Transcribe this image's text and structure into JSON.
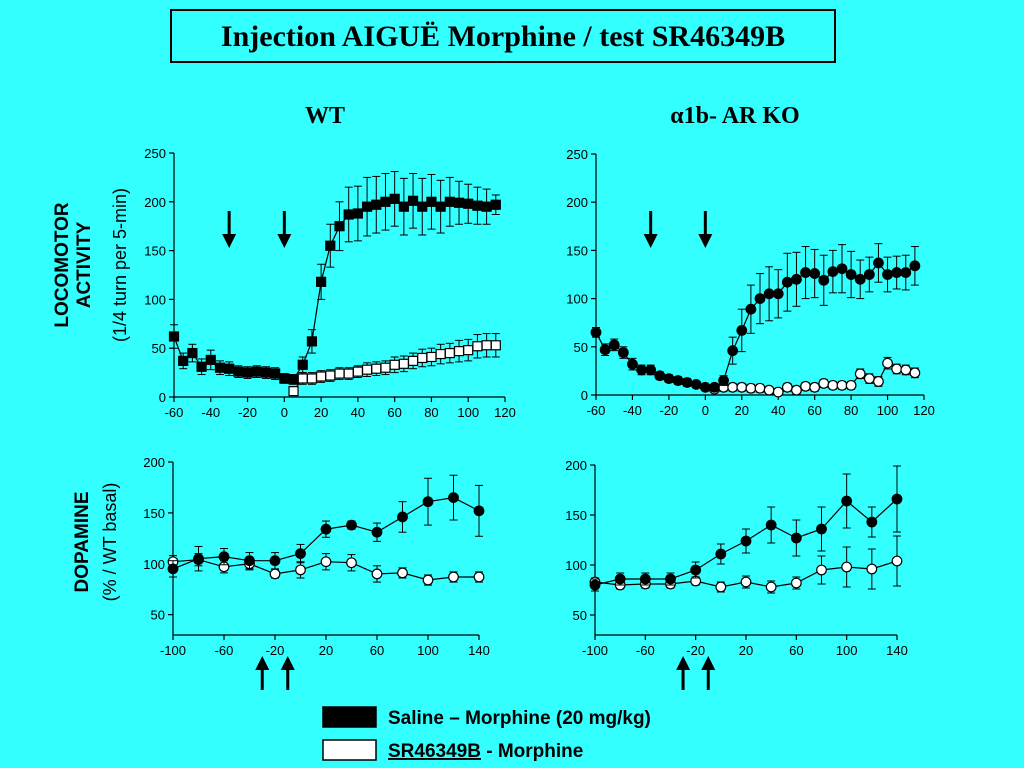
{
  "page": {
    "title": "Injection AIGUË Morphine / test SR46349B",
    "background": "#33ffff"
  },
  "panel_titles": {
    "left": "WT",
    "right": "α1b- AR KO"
  },
  "y_labels": {
    "loco_line1": "LOCOMOTOR",
    "loco_line2": "ACTIVITY",
    "loco_line3": "(1/4 turn per 5-min)",
    "dopa_line1": "DOPAMINE",
    "dopa_line2": "(% / WT basal)"
  },
  "legend": {
    "saline_label": "Saline – Morphine (20 mg/kg)",
    "sr_label_underlined": "SR46349B",
    "sr_label_rest": " - Morphine",
    "saline_marker": "filled",
    "sr_marker": "open"
  },
  "arrows": {
    "locomotor_down_at_x": [
      -30,
      0
    ],
    "dopamine_up_at_x": [
      -30,
      -10
    ]
  },
  "chart_data": [
    {
      "id": "loco-wt",
      "type": "line",
      "xlim": [
        -60,
        120
      ],
      "ylim": [
        0,
        250
      ],
      "xticks": [
        -60,
        -40,
        -20,
        0,
        20,
        40,
        60,
        80,
        100,
        120
      ],
      "yticks": [
        0,
        50,
        100,
        150,
        200,
        250
      ],
      "marker": "square",
      "series": [
        {
          "style": "filled",
          "x": [
            -60,
            -55,
            -50,
            -45,
            -40,
            -35,
            -30,
            -25,
            -20,
            -15,
            -10,
            -5,
            0,
            5,
            10,
            15,
            20,
            25,
            30,
            35,
            40,
            45,
            50,
            55,
            60,
            65,
            70,
            75,
            80,
            85,
            90,
            95,
            100,
            105,
            110,
            115
          ],
          "y": [
            62,
            37,
            45,
            31,
            38,
            30,
            29,
            26,
            25,
            26,
            25,
            24,
            19,
            18,
            33,
            57,
            118,
            155,
            175,
            187,
            188,
            195,
            197,
            200,
            203,
            195,
            201,
            195,
            200,
            195,
            200,
            199,
            198,
            196,
            195,
            197
          ],
          "err": [
            12,
            8,
            9,
            8,
            10,
            7,
            7,
            6,
            6,
            6,
            6,
            6,
            5,
            5,
            8,
            12,
            18,
            22,
            25,
            28,
            28,
            30,
            29,
            29,
            28,
            29,
            28,
            29,
            28,
            27,
            25,
            22,
            20,
            19,
            18,
            10
          ]
        },
        {
          "style": "open",
          "x": [
            5,
            10,
            15,
            20,
            25,
            30,
            35,
            40,
            45,
            50,
            55,
            60,
            65,
            70,
            75,
            80,
            85,
            90,
            95,
            100,
            105,
            110,
            115
          ],
          "y": [
            6,
            19,
            19,
            21,
            22,
            24,
            24,
            26,
            28,
            29,
            30,
            33,
            34,
            37,
            40,
            41,
            44,
            45,
            47,
            48,
            52,
            53,
            53
          ],
          "err": [
            4,
            6,
            6,
            6,
            6,
            6,
            6,
            6,
            7,
            7,
            7,
            8,
            8,
            8,
            9,
            9,
            10,
            10,
            11,
            11,
            12,
            12,
            12
          ]
        }
      ]
    },
    {
      "id": "loco-ko",
      "type": "line",
      "xlim": [
        -60,
        120
      ],
      "ylim": [
        0,
        250
      ],
      "xticks": [
        -60,
        -40,
        -20,
        0,
        20,
        40,
        60,
        80,
        100,
        120
      ],
      "yticks": [
        0,
        50,
        100,
        150,
        200,
        250
      ],
      "marker": "circle",
      "series": [
        {
          "style": "filled",
          "x": [
            -60,
            -55,
            -50,
            -45,
            -40,
            -35,
            -30,
            -25,
            -20,
            -15,
            -10,
            -5,
            0,
            5,
            10,
            15,
            20,
            25,
            30,
            35,
            40,
            45,
            50,
            55,
            60,
            65,
            70,
            75,
            80,
            85,
            90,
            95,
            100,
            105,
            110,
            115
          ],
          "y": [
            65,
            47,
            52,
            44,
            32,
            26,
            26,
            20,
            17,
            15,
            13,
            11,
            8,
            8,
            15,
            46,
            67,
            89,
            100,
            105,
            105,
            117,
            120,
            127,
            126,
            119,
            128,
            131,
            125,
            120,
            125,
            137,
            125,
            127,
            127,
            134
          ],
          "err": [
            5,
            6,
            6,
            6,
            6,
            5,
            5,
            4,
            4,
            4,
            4,
            3,
            3,
            3,
            5,
            14,
            22,
            25,
            26,
            28,
            25,
            30,
            28,
            27,
            25,
            26,
            22,
            25,
            24,
            20,
            18,
            20,
            18,
            17,
            18,
            20
          ]
        },
        {
          "style": "open",
          "x": [
            5,
            10,
            15,
            20,
            25,
            30,
            35,
            40,
            45,
            50,
            55,
            60,
            65,
            70,
            75,
            80,
            85,
            90,
            95,
            100,
            105,
            110,
            115
          ],
          "y": [
            6,
            8,
            8,
            8,
            7,
            7,
            5,
            3,
            8,
            5,
            9,
            8,
            12,
            10,
            10,
            10,
            22,
            17,
            14,
            33,
            27,
            26,
            23
          ],
          "err": [
            3,
            4,
            4,
            4,
            4,
            4,
            3,
            3,
            4,
            4,
            4,
            4,
            4,
            4,
            4,
            4,
            5,
            5,
            5,
            6,
            5,
            5,
            5
          ]
        }
      ]
    },
    {
      "id": "dopa-wt",
      "type": "line",
      "xlim": [
        -100,
        140
      ],
      "ylim": [
        30,
        200
      ],
      "xticks": [
        -100,
        -60,
        -20,
        20,
        60,
        100,
        140
      ],
      "yticks": [
        50,
        100,
        150,
        200
      ],
      "marker": "circle",
      "series": [
        {
          "style": "filled",
          "x": [
            -100,
            -80,
            -60,
            -40,
            -20,
            0,
            20,
            40,
            60,
            80,
            100,
            120,
            140
          ],
          "y": [
            95,
            105,
            107,
            103,
            103,
            110,
            134,
            138,
            131,
            146,
            161,
            165,
            152
          ],
          "err": [
            8,
            12,
            8,
            8,
            8,
            9,
            8,
            4,
            9,
            15,
            23,
            22,
            25
          ]
        },
        {
          "style": "open",
          "x": [
            -100,
            -80,
            -60,
            -40,
            -20,
            0,
            20,
            40,
            60,
            80,
            100,
            120,
            140
          ],
          "y": [
            102,
            104,
            97,
            100,
            90,
            94,
            102,
            101,
            90,
            91,
            84,
            87,
            87
          ],
          "err": [
            6,
            6,
            6,
            6,
            4,
            8,
            8,
            8,
            8,
            5,
            5,
            5,
            5
          ]
        }
      ]
    },
    {
      "id": "dopa-ko",
      "type": "line",
      "xlim": [
        -100,
        140
      ],
      "ylim": [
        30,
        200
      ],
      "xticks": [
        -100,
        -60,
        -20,
        20,
        60,
        100,
        140
      ],
      "yticks": [
        50,
        100,
        150,
        200
      ],
      "marker": "circle",
      "series": [
        {
          "style": "filled",
          "x": [
            -100,
            -80,
            -60,
            -40,
            -20,
            0,
            20,
            40,
            60,
            80,
            100,
            120,
            140
          ],
          "y": [
            80,
            86,
            86,
            86,
            95,
            111,
            124,
            140,
            127,
            136,
            164,
            143,
            166
          ],
          "err": [
            6,
            6,
            6,
            6,
            8,
            10,
            12,
            18,
            18,
            22,
            27,
            15,
            33
          ]
        },
        {
          "style": "open",
          "x": [
            -100,
            -80,
            -60,
            -40,
            -20,
            0,
            20,
            40,
            60,
            80,
            100,
            120,
            140
          ],
          "y": [
            83,
            80,
            81,
            81,
            84,
            78,
            83,
            78,
            82,
            95,
            98,
            96,
            104
          ],
          "err": [
            4,
            4,
            4,
            4,
            4,
            5,
            6,
            6,
            6,
            14,
            20,
            20,
            25
          ]
        }
      ]
    }
  ]
}
